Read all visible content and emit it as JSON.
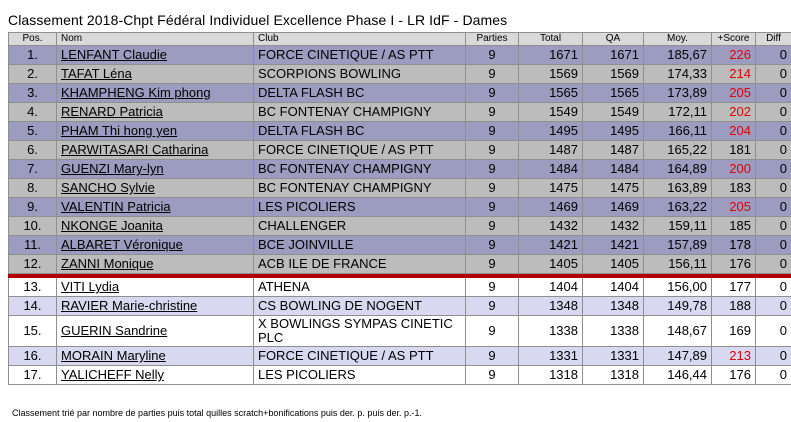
{
  "title": "Classement 2018-Chpt Fédéral Individuel Excellence Phase I - LR IdF - Dames",
  "headers": {
    "pos": "Pos.",
    "nom": "Nom",
    "club": "Club",
    "parties": "Parties",
    "total": "Total",
    "qa": "QA",
    "moy": "Moy.",
    "score": "+Score",
    "diff": "Diff"
  },
  "rows": [
    {
      "pos": "1.",
      "nom": "LENFANT Claudie",
      "club": "FORCE CINETIQUE / AS PTT",
      "parties": "9",
      "total": "1671",
      "qa": "1671",
      "moy": "185,67",
      "score": "226",
      "diff": "0",
      "score_red": true
    },
    {
      "pos": "2.",
      "nom": "TAFAT Léna",
      "club": "SCORPIONS BOWLING",
      "parties": "9",
      "total": "1569",
      "qa": "1569",
      "moy": "174,33",
      "score": "214",
      "diff": "0",
      "score_red": true
    },
    {
      "pos": "3.",
      "nom": "KHAMPHENG Kim phong",
      "club": "DELTA FLASH BC",
      "parties": "9",
      "total": "1565",
      "qa": "1565",
      "moy": "173,89",
      "score": "205",
      "diff": "0",
      "score_red": true
    },
    {
      "pos": "4.",
      "nom": "RENARD Patricia",
      "club": "BC FONTENAY CHAMPIGNY",
      "parties": "9",
      "total": "1549",
      "qa": "1549",
      "moy": "172,11",
      "score": "202",
      "diff": "0",
      "score_red": true
    },
    {
      "pos": "5.",
      "nom": "PHAM Thi hong yen",
      "club": "DELTA FLASH BC",
      "parties": "9",
      "total": "1495",
      "qa": "1495",
      "moy": "166,11",
      "score": "204",
      "diff": "0",
      "score_red": true
    },
    {
      "pos": "6.",
      "nom": "PARWITASARI Catharina",
      "club": "FORCE CINETIQUE / AS PTT",
      "parties": "9",
      "total": "1487",
      "qa": "1487",
      "moy": "165,22",
      "score": "181",
      "diff": "0",
      "score_red": false
    },
    {
      "pos": "7.",
      "nom": "GUENZI Mary-lyn",
      "club": "BC FONTENAY CHAMPIGNY",
      "parties": "9",
      "total": "1484",
      "qa": "1484",
      "moy": "164,89",
      "score": "200",
      "diff": "0",
      "score_red": true
    },
    {
      "pos": "8.",
      "nom": "SANCHO Sylvie",
      "club": "BC FONTENAY CHAMPIGNY",
      "parties": "9",
      "total": "1475",
      "qa": "1475",
      "moy": "163,89",
      "score": "183",
      "diff": "0",
      "score_red": false
    },
    {
      "pos": "9.",
      "nom": "VALENTIN Patricia",
      "club": "LES PICOLIERS",
      "parties": "9",
      "total": "1469",
      "qa": "1469",
      "moy": "163,22",
      "score": "205",
      "diff": "0",
      "score_red": true
    },
    {
      "pos": "10.",
      "nom": "NKONGE Joanita",
      "club": "CHALLENGER",
      "parties": "9",
      "total": "1432",
      "qa": "1432",
      "moy": "159,11",
      "score": "185",
      "diff": "0",
      "score_red": false
    },
    {
      "pos": "11.",
      "nom": "ALBARET Véronique",
      "club": "BCE JOINVILLE",
      "parties": "9",
      "total": "1421",
      "qa": "1421",
      "moy": "157,89",
      "score": "178",
      "diff": "0",
      "score_red": false
    },
    {
      "pos": "12.",
      "nom": "ZANNI Monique",
      "club": "ACB ILE DE FRANCE",
      "parties": "9",
      "total": "1405",
      "qa": "1405",
      "moy": "156,11",
      "score": "176",
      "diff": "0",
      "score_red": false
    },
    {
      "pos": "13.",
      "nom": "VITI Lydia",
      "club": "ATHENA",
      "parties": "9",
      "total": "1404",
      "qa": "1404",
      "moy": "156,00",
      "score": "177",
      "diff": "0",
      "score_red": false
    },
    {
      "pos": "14.",
      "nom": "RAVIER Marie-christine",
      "club": "CS BOWLING DE NOGENT",
      "parties": "9",
      "total": "1348",
      "qa": "1348",
      "moy": "149,78",
      "score": "188",
      "diff": "0",
      "score_red": false
    },
    {
      "pos": "15.",
      "nom": "GUERIN Sandrine",
      "club": "X BOWLINGS SYMPAS CINETIC PLC",
      "parties": "9",
      "total": "1338",
      "qa": "1338",
      "moy": "148,67",
      "score": "169",
      "diff": "0",
      "score_red": false
    },
    {
      "pos": "16.",
      "nom": "MORAIN Maryline",
      "club": "FORCE CINETIQUE / AS PTT",
      "parties": "9",
      "total": "1331",
      "qa": "1331",
      "moy": "147,89",
      "score": "213",
      "diff": "0",
      "score_red": true
    },
    {
      "pos": "17.",
      "nom": "YALICHEFF Nelly",
      "club": "LES PICOLIERS",
      "parties": "9",
      "total": "1318",
      "qa": "1318",
      "moy": "146,44",
      "score": "176",
      "diff": "0",
      "score_red": false
    }
  ],
  "footnote": "Classement trié par nombre de parties puis total quilles scratch+bonifications puis der. p. puis der. p.-1."
}
